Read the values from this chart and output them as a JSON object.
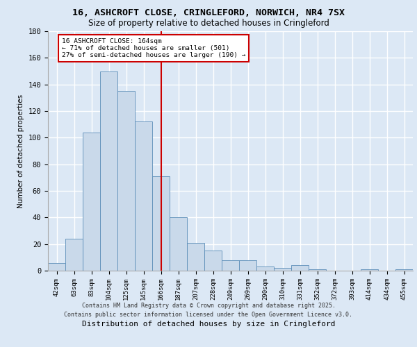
{
  "title_line1": "16, ASHCROFT CLOSE, CRINGLEFORD, NORWICH, NR4 7SX",
  "title_line2": "Size of property relative to detached houses in Cringleford",
  "xlabel": "Distribution of detached houses by size in Cringleford",
  "ylabel": "Number of detached properties",
  "categories": [
    "42sqm",
    "63sqm",
    "83sqm",
    "104sqm",
    "125sqm",
    "145sqm",
    "166sqm",
    "187sqm",
    "207sqm",
    "228sqm",
    "249sqm",
    "269sqm",
    "290sqm",
    "310sqm",
    "331sqm",
    "352sqm",
    "372sqm",
    "393sqm",
    "414sqm",
    "434sqm",
    "455sqm"
  ],
  "values": [
    6,
    24,
    104,
    150,
    135,
    112,
    71,
    40,
    21,
    15,
    8,
    8,
    3,
    2,
    4,
    1,
    0,
    0,
    1,
    0,
    1
  ],
  "bar_color": "#c9d9ea",
  "bar_edge_color": "#5b8db8",
  "vline_x": 6,
  "vline_color": "#cc0000",
  "annotation_text": "16 ASHCROFT CLOSE: 164sqm\n← 71% of detached houses are smaller (501)\n27% of semi-detached houses are larger (190) →",
  "annotation_box_color": "#ffffff",
  "annotation_box_edge_color": "#cc0000",
  "bg_color": "#dce8f5",
  "plot_bg_color": "#dce8f5",
  "grid_color": "#ffffff",
  "ylim": [
    0,
    180
  ],
  "yticks": [
    0,
    20,
    40,
    60,
    80,
    100,
    120,
    140,
    160,
    180
  ],
  "footer_line1": "Contains HM Land Registry data © Crown copyright and database right 2025.",
  "footer_line2": "Contains public sector information licensed under the Open Government Licence v3.0."
}
